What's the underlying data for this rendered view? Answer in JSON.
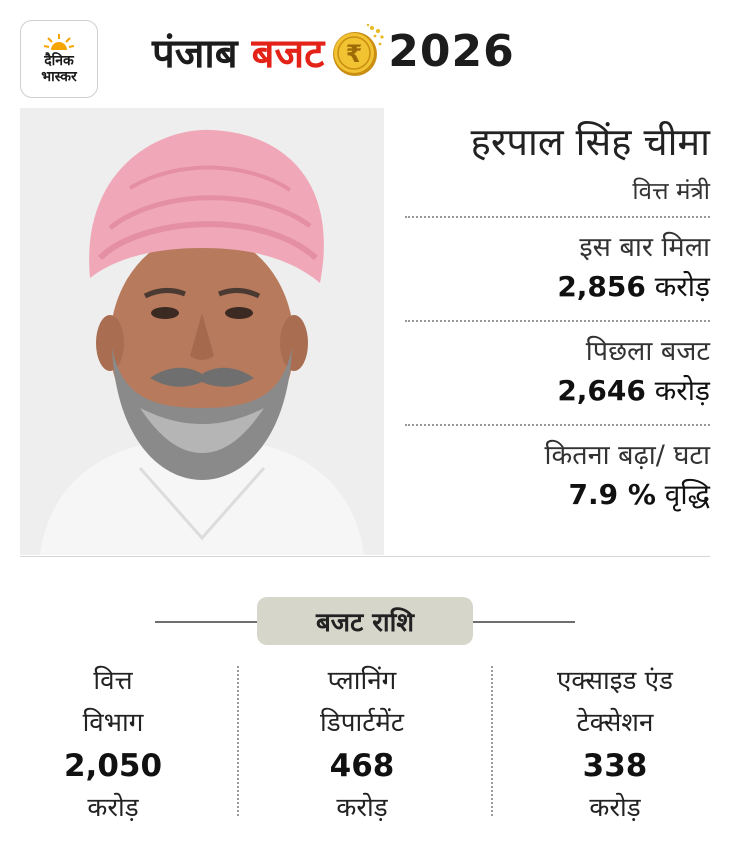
{
  "header": {
    "logo": {
      "line1": "दैनिक",
      "line2": "भास्कर"
    },
    "title_part1": "पंजाब",
    "title_part2": "बजट",
    "coin_symbol": "₹",
    "title_year": "2026"
  },
  "profile": {
    "name": "हरपाल सिंह चीमा",
    "role": "वित्त मंत्री"
  },
  "stats": [
    {
      "label": "इस बार मिला",
      "value": "2,856",
      "unit": "करोड़"
    },
    {
      "label": "पिछला बजट",
      "value": "2,646",
      "unit": "करोड़"
    },
    {
      "label": "कितना बढ़ा/ घटा",
      "value": "7.9 %",
      "unit": "वृद्धि"
    }
  ],
  "budget_section": {
    "title": "बजट राशि",
    "departments": [
      {
        "line1": "वित्त",
        "line2": "विभाग",
        "amount": "2,050",
        "unit": "करोड़"
      },
      {
        "line1": "प्लानिंग",
        "line2": "डिपार्टमेंट",
        "amount": "468",
        "unit": "करोड़"
      },
      {
        "line1": "एक्साइड एंड",
        "line2": "टेक्सेशन",
        "amount": "338",
        "unit": "करोड़"
      }
    ]
  },
  "colors": {
    "accent_red": "#e32218",
    "pill_bg": "#d7d6cb",
    "coin_gold": "#e8b923",
    "turban_pink": "#f0a8b8"
  }
}
